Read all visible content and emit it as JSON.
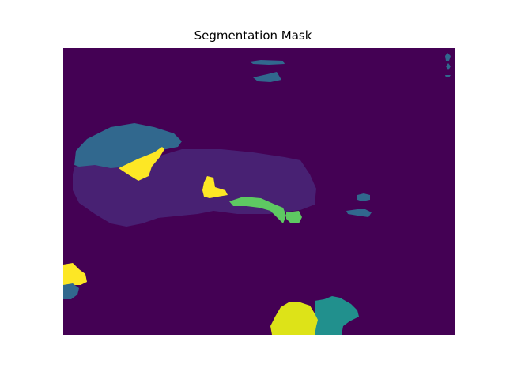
{
  "figure": {
    "title": "Segmentation Mask"
  },
  "mask": {
    "colormap": "viridis",
    "background_color": "#440154",
    "class_colors": {
      "c1": "#482173",
      "c2": "#31688e",
      "c3": "#21908d",
      "c4": "#5ec962",
      "c5": "#dde318",
      "c6": "#fde725"
    },
    "axes_visible": false
  }
}
